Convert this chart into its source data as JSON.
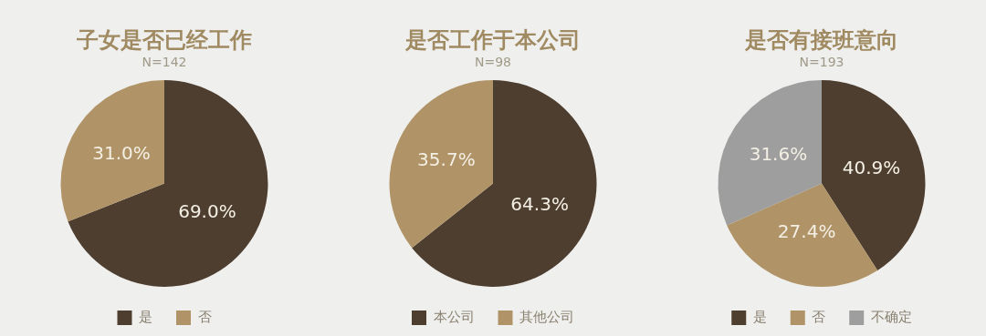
{
  "chart_data": [
    {
      "type": "pie",
      "title": "子女是否已经工作",
      "subtitle": "N=142",
      "categories": [
        "是",
        "否"
      ],
      "values": [
        69.0,
        31.0
      ],
      "colors": [
        "#4e3e30",
        "#b09467"
      ],
      "value_labels": [
        "69.0%",
        "31.0%"
      ],
      "legend": "bottom"
    },
    {
      "type": "pie",
      "title": "是否工作于本公司",
      "subtitle": "N=98",
      "categories": [
        "本公司",
        "其他公司"
      ],
      "values": [
        64.3,
        35.7
      ],
      "colors": [
        "#4e3e30",
        "#b09467"
      ],
      "value_labels": [
        "64.3%",
        "35.7%"
      ],
      "legend": "bottom"
    },
    {
      "type": "pie",
      "title": "是否有接班意向",
      "subtitle": "N=193",
      "categories": [
        "是",
        "否",
        "不确定"
      ],
      "values": [
        40.9,
        27.4,
        31.6
      ],
      "colors": [
        "#4e3e30",
        "#b09467",
        "#9e9e9e"
      ],
      "value_labels": [
        "40.9%",
        "27.4%",
        "31.6%"
      ],
      "legend": "bottom"
    }
  ]
}
